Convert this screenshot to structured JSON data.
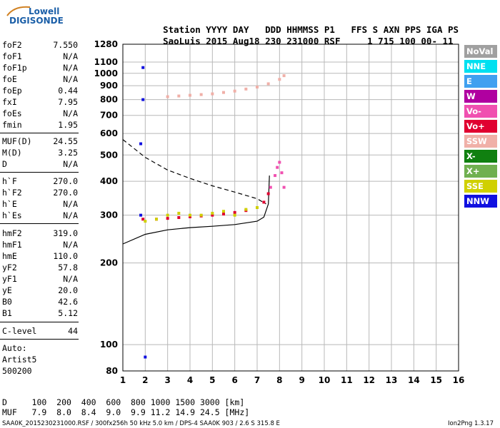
{
  "logo": {
    "line1": "Lowell",
    "line2": "DIGISONDE"
  },
  "header": {
    "labels": [
      "Station",
      "YYYY",
      "DAY",
      "DDD",
      "HHMMSS",
      "P1",
      "FFS",
      "S",
      "AXN",
      "PPS",
      "IGA",
      "PS"
    ],
    "values": [
      "SaoLuis",
      "2015",
      "Aug18",
      "230",
      "231000",
      "RSF",
      "1",
      "715",
      "100",
      "00-",
      "11"
    ]
  },
  "params": [
    {
      "name": "foF2",
      "value": "7.550"
    },
    {
      "name": "foF1",
      "value": "N/A"
    },
    {
      "name": "foF1p",
      "value": "N/A"
    },
    {
      "name": "foE",
      "value": "N/A"
    },
    {
      "name": "foEp",
      "value": "0.44"
    },
    {
      "name": "fxI",
      "value": "7.95"
    },
    {
      "name": "foEs",
      "value": "N/A"
    },
    {
      "name": "fmin",
      "value": "1.95"
    },
    {
      "name": "MUF(D)",
      "value": "24.55"
    },
    {
      "name": "M(D)",
      "value": "3.25"
    },
    {
      "name": "D",
      "value": "N/A"
    },
    {
      "name": "h`F",
      "value": "270.0"
    },
    {
      "name": "h`F2",
      "value": "270.0"
    },
    {
      "name": "h`E",
      "value": "N/A"
    },
    {
      "name": "h`Es",
      "value": "N/A"
    },
    {
      "name": "hmF2",
      "value": "319.0"
    },
    {
      "name": "hmF1",
      "value": "N/A"
    },
    {
      "name": "hmE",
      "value": "110.0"
    },
    {
      "name": "yF2",
      "value": "57.8"
    },
    {
      "name": "yF1",
      "value": "N/A"
    },
    {
      "name": "yE",
      "value": "20.0"
    },
    {
      "name": "B0",
      "value": "42.6"
    },
    {
      "name": "B1",
      "value": "5.12"
    },
    {
      "name": "C-level",
      "value": "44"
    }
  ],
  "auto": {
    "line1": "Auto:",
    "line2": "Artist5",
    "line3": "500200"
  },
  "legend": [
    {
      "label": "NoVal",
      "bg": "#a0a0a0",
      "fg": "#ffffff"
    },
    {
      "label": "NNE",
      "bg": "#00e0f0",
      "fg": "#ffffff"
    },
    {
      "label": "E",
      "bg": "#40a0f0",
      "fg": "#ffffff"
    },
    {
      "label": "W",
      "bg": "#b000a0",
      "fg": "#ffffff"
    },
    {
      "label": "Vo-",
      "bg": "#f050b0",
      "fg": "#ffffff"
    },
    {
      "label": "Vo+",
      "bg": "#e00030",
      "fg": "#ffffff"
    },
    {
      "label": "SSW",
      "bg": "#f0b0a8",
      "fg": "#ffffff"
    },
    {
      "label": "X-",
      "bg": "#108010",
      "fg": "#ffffff"
    },
    {
      "label": "X+",
      "bg": "#70b050",
      "fg": "#ffffff"
    },
    {
      "label": "SSE",
      "bg": "#d0d000",
      "fg": "#ffffff"
    },
    {
      "label": "NNW",
      "bg": "#1010e0",
      "fg": "#ffffff"
    }
  ],
  "bottom": {
    "d_row": "D     100  200  400  600  800 1000 1500 3000 [km]",
    "muf_row": "MUF   7.9  8.0  8.4  9.0  9.9 11.2 14.9 24.5 [MHz]"
  },
  "footer": {
    "left": "SAA0K_2015230231000.RSF / 300fx256h 50 kHz 5.0 km / DPS-4 SAA0K 903 / 2.6 S 315.8 E",
    "right": "Ion2Png 1.3.17"
  },
  "chart_data": {
    "type": "scatter",
    "title": "",
    "xlabel": "",
    "ylabel": "",
    "xlim": [
      1,
      16
    ],
    "ylim": [
      80,
      1280
    ],
    "y_scale": "logarithmic",
    "x_ticks": [
      1,
      2,
      3,
      4,
      5,
      6,
      7,
      8,
      9,
      10,
      11,
      12,
      13,
      14,
      15,
      16
    ],
    "y_ticks": [
      80,
      100,
      200,
      300,
      400,
      500,
      600,
      700,
      800,
      900,
      1000,
      1100,
      1280
    ],
    "grid": true,
    "series": [
      {
        "name": "Vo+",
        "color": "#e00030",
        "x": [
          1.9,
          2.5,
          3.0,
          3.5,
          4.0,
          4.5,
          5.0,
          5.5,
          6.0,
          6.5,
          7.0,
          7.3,
          7.5
        ],
        "y": [
          290,
          290,
          292,
          294,
          296,
          298,
          300,
          303,
          307,
          312,
          320,
          335,
          360
        ]
      },
      {
        "name": "SSE",
        "color": "#d0d000",
        "x": [
          2.0,
          2.5,
          3.0,
          3.5,
          4.0,
          4.5,
          5.0,
          5.5,
          6.0,
          6.5,
          7.0
        ],
        "y": [
          285,
          290,
          300,
          305,
          300,
          300,
          305,
          310,
          300,
          315,
          320
        ]
      },
      {
        "name": "SSW",
        "color": "#f0b0a8",
        "x": [
          3.0,
          3.5,
          4.0,
          4.5,
          5.0,
          5.5,
          6.0,
          6.5,
          7.0,
          7.5,
          8.0,
          8.2
        ],
        "y": [
          820,
          825,
          830,
          835,
          840,
          850,
          860,
          875,
          890,
          915,
          950,
          980
        ]
      },
      {
        "name": "Vo-",
        "color": "#f050b0",
        "x": [
          7.6,
          7.8,
          7.9,
          8.0,
          8.1,
          8.2
        ],
        "y": [
          380,
          420,
          450,
          470,
          430,
          380
        ]
      },
      {
        "name": "NNW",
        "color": "#1010e0",
        "x": [
          1.8,
          1.8,
          1.9,
          1.9,
          2.0
        ],
        "y": [
          300,
          550,
          800,
          1050,
          90
        ]
      }
    ],
    "curves": [
      {
        "name": "profile-solid",
        "style": "solid",
        "x": [
          1.0,
          2.0,
          3.0,
          4.0,
          5.0,
          6.0,
          7.0,
          7.3,
          7.5,
          7.55
        ],
        "y": [
          235,
          255,
          265,
          270,
          273,
          277,
          285,
          295,
          330,
          420
        ]
      },
      {
        "name": "profile-dashed",
        "style": "dashed",
        "x": [
          1.0,
          2.0,
          3.0,
          4.0,
          5.0,
          6.0,
          7.0,
          7.4
        ],
        "y": [
          570,
          490,
          440,
          410,
          385,
          365,
          345,
          330
        ]
      }
    ]
  }
}
